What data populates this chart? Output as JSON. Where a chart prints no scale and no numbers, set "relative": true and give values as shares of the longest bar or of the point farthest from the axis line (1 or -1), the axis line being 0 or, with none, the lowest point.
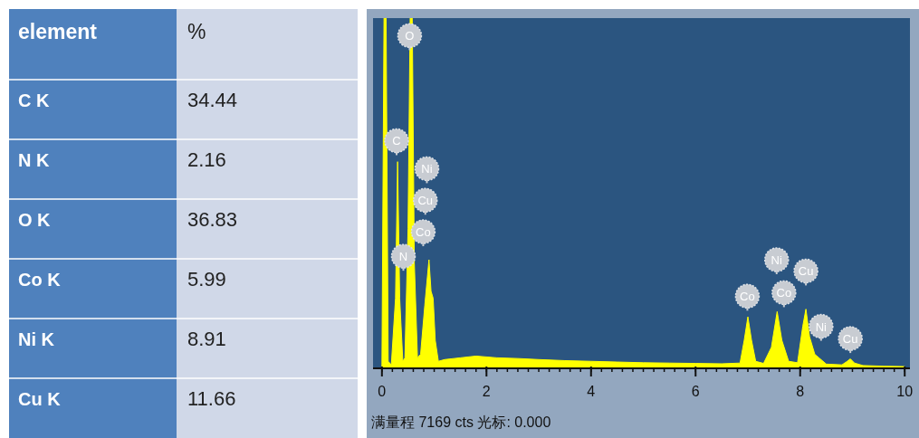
{
  "chart_data": [
    {
      "type": "other",
      "data_labels": true,
      "xlabel": "element",
      "ylabel": "%",
      "categories": [
        "C K",
        "N K",
        "O K",
        "Co K",
        "Ni K",
        "Cu K"
      ],
      "values": [
        34.44,
        2.16,
        36.83,
        5.99,
        8.91,
        11.66
      ]
    },
    {
      "type": "area",
      "color": "#ffff00",
      "relative": true,
      "xlim": [
        -0.17,
        10.1
      ],
      "xticks": [
        0,
        2,
        4,
        6,
        8,
        10
      ],
      "x": [
        0.0,
        0.04,
        0.08,
        0.12,
        0.18,
        0.26,
        0.3,
        0.34,
        0.4,
        0.44,
        0.5,
        0.54,
        0.58,
        0.62,
        0.68,
        0.74,
        0.82,
        0.9,
        0.94,
        0.98,
        1.02,
        1.08,
        1.2,
        1.5,
        1.8,
        2.2,
        2.6,
        3.0,
        3.5,
        4.0,
        4.5,
        5.0,
        5.5,
        6.0,
        6.5,
        6.85,
        6.93,
        7.0,
        7.07,
        7.15,
        7.3,
        7.45,
        7.56,
        7.65,
        7.78,
        7.95,
        8.05,
        8.11,
        8.18,
        8.28,
        8.36,
        8.5,
        8.8,
        8.9,
        8.96,
        9.04,
        9.2,
        9.6,
        10.0
      ],
      "values": [
        0,
        1,
        1,
        0.02,
        0.01,
        0.2,
        0.59,
        0.2,
        0.02,
        0.03,
        0.4,
        1,
        1,
        0.3,
        0.03,
        0.04,
        0.18,
        0.31,
        0.22,
        0.2,
        0.08,
        0.02,
        0.025,
        0.03,
        0.035,
        0.03,
        0.028,
        0.025,
        0.022,
        0.02,
        0.018,
        0.016,
        0.015,
        0.014,
        0.013,
        0.015,
        0.08,
        0.147,
        0.08,
        0.02,
        0.014,
        0.06,
        0.162,
        0.08,
        0.02,
        0.016,
        0.12,
        0.169,
        0.09,
        0.04,
        0.03,
        0.012,
        0.01,
        0.02,
        0.027,
        0.015,
        0.008,
        0.006,
        0.005
      ],
      "annotations": [
        {
          "text": "O",
          "x": 0.53,
          "y": 0.95
        },
        {
          "text": "C",
          "x": 0.28,
          "y": 0.65
        },
        {
          "text": "Ni",
          "x": 0.86,
          "y": 0.57
        },
        {
          "text": "Cu",
          "x": 0.83,
          "y": 0.48
        },
        {
          "text": "Co",
          "x": 0.79,
          "y": 0.39
        },
        {
          "text": "N",
          "x": 0.41,
          "y": 0.32
        },
        {
          "text": "Co",
          "x": 6.99,
          "y": 0.206
        },
        {
          "text": "Ni",
          "x": 7.55,
          "y": 0.31
        },
        {
          "text": "Co",
          "x": 7.69,
          "y": 0.216
        },
        {
          "text": "Cu",
          "x": 8.11,
          "y": 0.278
        },
        {
          "text": "Ni",
          "x": 8.4,
          "y": 0.12
        },
        {
          "text": "Cu",
          "x": 8.96,
          "y": 0.085
        },
        "满量程 7169 cts 光标: 0.000"
      ]
    }
  ]
}
